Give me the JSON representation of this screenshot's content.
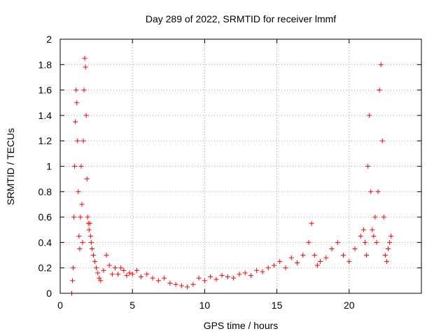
{
  "chart_data": {
    "type": "scatter",
    "title": "Day 289 of 2022, SRMTID for receiver lmmf",
    "xlabel": "GPS time / hours",
    "ylabel": "SRMTID / TECUs",
    "xlim": [
      0,
      25
    ],
    "ylim": [
      0,
      2
    ],
    "x_ticks": [
      0,
      5,
      10,
      15,
      20
    ],
    "y_ticks": [
      0,
      0.2,
      0.4,
      0.6,
      0.8,
      1,
      1.2,
      1.4,
      1.6,
      1.8,
      2
    ],
    "grid": true,
    "marker": "+",
    "color": "#ff0000",
    "series": [
      {
        "name": "SRMTID",
        "x": [
          0.8,
          0.85,
          0.9,
          0.95,
          1.0,
          1.05,
          1.1,
          1.15,
          1.2,
          1.25,
          1.3,
          1.35,
          1.4,
          1.45,
          1.5,
          1.55,
          1.6,
          1.65,
          1.7,
          1.75,
          1.8,
          1.85,
          1.9,
          1.95,
          2.0,
          2.05,
          2.1,
          2.15,
          2.2,
          2.3,
          2.4,
          2.5,
          2.6,
          2.7,
          2.8,
          3.0,
          3.2,
          3.4,
          3.6,
          3.8,
          4.0,
          4.2,
          4.4,
          4.6,
          4.8,
          5.0,
          5.3,
          5.6,
          6.0,
          6.4,
          6.8,
          7.2,
          7.6,
          8.0,
          8.4,
          8.8,
          9.2,
          9.6,
          10.0,
          10.4,
          10.8,
          11.2,
          11.6,
          12.0,
          12.4,
          12.8,
          13.2,
          13.6,
          14.0,
          14.4,
          14.8,
          15.2,
          15.6,
          16.0,
          16.4,
          16.8,
          17.2,
          17.4,
          17.6,
          17.8,
          18.0,
          18.4,
          18.8,
          19.2,
          19.6,
          20.0,
          20.4,
          20.8,
          21.0,
          21.1,
          21.2,
          21.3,
          21.4,
          21.5,
          21.6,
          21.7,
          21.8,
          21.9,
          22.0,
          22.1,
          22.2,
          22.3,
          22.4,
          22.5,
          22.6,
          22.7,
          22.8,
          22.9
        ],
        "values": [
          0.0,
          0.1,
          0.2,
          0.6,
          1.0,
          1.35,
          1.6,
          1.5,
          1.2,
          0.8,
          0.45,
          0.35,
          0.6,
          1.0,
          0.7,
          0.4,
          1.2,
          1.6,
          1.85,
          1.78,
          1.4,
          0.9,
          0.6,
          0.55,
          0.5,
          0.55,
          0.45,
          0.4,
          0.35,
          0.3,
          0.25,
          0.2,
          0.16,
          0.12,
          0.1,
          0.18,
          0.3,
          0.22,
          0.15,
          0.2,
          0.15,
          0.2,
          0.18,
          0.14,
          0.16,
          0.15,
          0.18,
          0.13,
          0.15,
          0.12,
          0.1,
          0.12,
          0.08,
          0.07,
          0.06,
          0.05,
          0.07,
          0.12,
          0.1,
          0.13,
          0.11,
          0.14,
          0.13,
          0.12,
          0.15,
          0.16,
          0.14,
          0.18,
          0.17,
          0.2,
          0.22,
          0.25,
          0.2,
          0.28,
          0.24,
          0.3,
          0.4,
          0.55,
          0.3,
          0.22,
          0.25,
          0.28,
          0.35,
          0.4,
          0.3,
          0.25,
          0.35,
          0.45,
          0.5,
          0.4,
          0.3,
          1.0,
          1.4,
          0.8,
          0.5,
          0.45,
          0.6,
          0.4,
          0.8,
          1.6,
          1.8,
          1.2,
          0.6,
          0.3,
          0.25,
          0.35,
          0.4,
          0.45
        ]
      }
    ]
  }
}
